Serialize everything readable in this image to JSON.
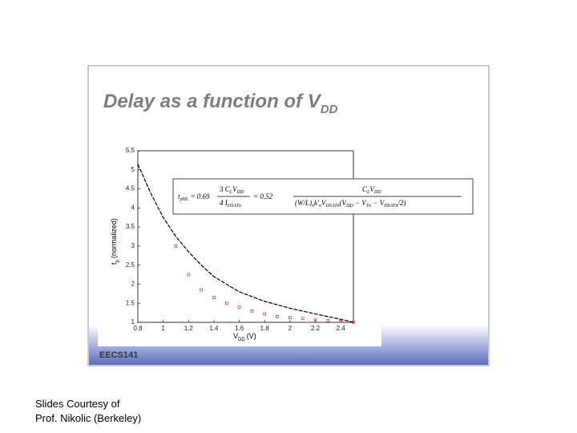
{
  "slide": {
    "title": "Delay as a function of V",
    "title_sub": "DD",
    "footer": "EECS141"
  },
  "caption": [
    "Slides Courtesy of",
    "Prof. Nikolic (Berkeley)"
  ],
  "formula": {
    "lhs": [
      {
        "text": "t"
      },
      {
        "sub": "pHL"
      },
      {
        "text": " = 0.69"
      }
    ],
    "num1": [
      {
        "text": "3"
      },
      {
        "text": " C"
      },
      {
        "sub": "L"
      },
      {
        "text": "V"
      },
      {
        "sub": "DD"
      }
    ],
    "den1": [
      {
        "text": "4"
      },
      {
        "text": " I"
      },
      {
        "sub": "DSATn"
      }
    ],
    "mid": [
      {
        "text": "= 0.52"
      }
    ],
    "num2": [
      {
        "text": "C"
      },
      {
        "sub": "L"
      },
      {
        "text": "V"
      },
      {
        "sub": "DD"
      }
    ],
    "den2": [
      {
        "text": "(W/L)"
      },
      {
        "sub": "n"
      },
      {
        "text": "k'"
      },
      {
        "sub": "n"
      },
      {
        "text": "V"
      },
      {
        "sub": "DSATn"
      },
      {
        "text": "(V"
      },
      {
        "sub": "DD"
      },
      {
        "text": " − V"
      },
      {
        "sub": "Tn"
      },
      {
        "text": " − V"
      },
      {
        "sub": "DSATn"
      },
      {
        "text": "/2)"
      }
    ]
  },
  "chart_data": {
    "type": "line",
    "xlabel": "V",
    "xlabel_sub": "DD",
    "xlabel_unit": "(V)",
    "ylabel": "t",
    "ylabel_sub": "p",
    "ylabel_unit": "(normalized)",
    "xlim": [
      0.8,
      2.5
    ],
    "xticks": [
      0.8,
      1,
      1.2,
      1.4,
      1.6,
      1.8,
      2,
      2.2,
      2.4
    ],
    "ylim": [
      1,
      5.5
    ],
    "yticks": [
      1,
      1.5,
      2,
      2.5,
      3,
      3.5,
      4,
      4.5,
      5,
      5.5
    ],
    "series": [
      {
        "type": "line",
        "color": "#000000",
        "x": [
          0.8,
          0.9,
          1.0,
          1.1,
          1.2,
          1.3,
          1.4,
          1.6,
          1.8,
          2.0,
          2.2,
          2.4,
          2.5
        ],
        "values": [
          5.15,
          4.4,
          3.75,
          3.25,
          2.85,
          2.5,
          2.2,
          1.8,
          1.55,
          1.37,
          1.22,
          1.08,
          1.0
        ]
      },
      {
        "type": "scatter",
        "color": "#c03030",
        "x": [
          1.1,
          1.2,
          1.3,
          1.4,
          1.5,
          1.6,
          1.7,
          1.8,
          1.9,
          2.0,
          2.1,
          2.2,
          2.3,
          2.4,
          2.5
        ],
        "values": [
          3.0,
          2.25,
          1.85,
          1.65,
          1.5,
          1.4,
          1.3,
          1.22,
          1.15,
          1.12,
          1.1,
          1.07,
          1.05,
          1.03,
          1.0
        ]
      }
    ]
  }
}
